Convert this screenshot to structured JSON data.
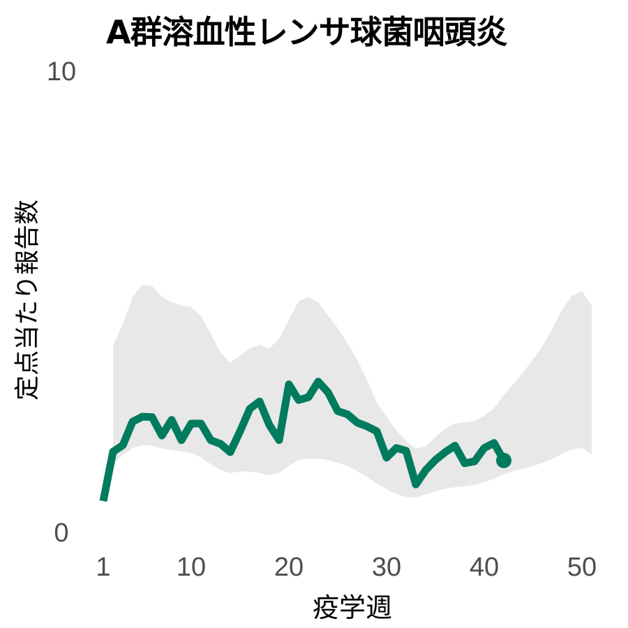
{
  "chart_data": {
    "type": "line",
    "title": "A群溶血性レンサ球菌咽頭炎",
    "xlabel": "疫学週",
    "ylabel": "定点当たり報告数",
    "xlim": [
      1,
      51
    ],
    "ylim": [
      0,
      10
    ],
    "x_ticks": [
      1,
      10,
      20,
      30,
      40,
      50
    ],
    "y_ticks": [
      0,
      10
    ],
    "grid": false,
    "legend": null,
    "colors": {
      "line": "#007B5E",
      "band": "#E8E8E8",
      "text": "#4D4D4D"
    },
    "series": [
      {
        "name": "current",
        "type": "line",
        "x": [
          1,
          2,
          3,
          4,
          5,
          6,
          7,
          8,
          9,
          10,
          11,
          12,
          13,
          14,
          15,
          16,
          17,
          18,
          19,
          20,
          21,
          22,
          23,
          24,
          25,
          26,
          27,
          28,
          29,
          30,
          31,
          32,
          33,
          34,
          35,
          36,
          37,
          38,
          39,
          40,
          41,
          42
        ],
        "values": [
          0.68,
          1.75,
          1.89,
          2.4,
          2.51,
          2.5,
          2.1,
          2.44,
          2.0,
          2.36,
          2.36,
          2.0,
          1.92,
          1.74,
          2.19,
          2.68,
          2.84,
          2.33,
          2.0,
          3.21,
          2.87,
          2.93,
          3.27,
          3.04,
          2.63,
          2.56,
          2.38,
          2.3,
          2.19,
          1.62,
          1.83,
          1.77,
          1.04,
          1.35,
          1.57,
          1.74,
          1.88,
          1.5,
          1.54,
          1.83,
          1.94,
          1.56
        ],
        "end_marker": true
      },
      {
        "name": "range",
        "type": "area",
        "x": [
          2,
          3,
          4,
          5,
          6,
          7,
          8,
          9,
          10,
          11,
          12,
          13,
          14,
          15,
          16,
          17,
          18,
          19,
          20,
          21,
          22,
          23,
          24,
          25,
          26,
          27,
          28,
          29,
          30,
          31,
          32,
          33,
          34,
          35,
          36,
          37,
          38,
          39,
          40,
          41,
          42,
          43,
          44,
          45,
          46,
          47,
          48,
          49,
          50,
          51
        ],
        "upper": [
          4.05,
          4.51,
          5.11,
          5.37,
          5.34,
          5.11,
          4.99,
          4.92,
          4.89,
          4.69,
          4.31,
          3.9,
          3.68,
          3.83,
          3.99,
          4.07,
          3.99,
          4.2,
          4.61,
          5.01,
          5.1,
          4.99,
          4.7,
          4.43,
          4.1,
          3.75,
          3.3,
          2.81,
          2.51,
          2.21,
          1.98,
          1.82,
          1.86,
          2.07,
          2.25,
          2.36,
          2.39,
          2.42,
          2.53,
          2.69,
          2.98,
          3.22,
          3.48,
          3.75,
          4.05,
          4.43,
          4.84,
          5.14,
          5.23,
          4.92
        ],
        "lower": [
          1.48,
          1.68,
          1.83,
          1.89,
          1.88,
          1.82,
          1.79,
          1.76,
          1.72,
          1.63,
          1.48,
          1.35,
          1.29,
          1.32,
          1.32,
          1.29,
          1.24,
          1.29,
          1.44,
          1.57,
          1.6,
          1.6,
          1.57,
          1.51,
          1.44,
          1.33,
          1.2,
          1.06,
          0.94,
          0.83,
          0.76,
          0.76,
          0.82,
          0.89,
          0.95,
          0.98,
          1.0,
          1.03,
          1.09,
          1.16,
          1.26,
          1.33,
          1.38,
          1.44,
          1.51,
          1.6,
          1.71,
          1.8,
          1.83,
          1.69
        ]
      }
    ]
  },
  "labels": {
    "title": "A群溶血性レンサ球菌咽頭炎",
    "xlabel": "疫学週",
    "ylabel": "定点当たり報告数",
    "x_ticks": [
      "1",
      "10",
      "20",
      "30",
      "40",
      "50"
    ],
    "y_ticks": [
      "0",
      "10"
    ]
  }
}
